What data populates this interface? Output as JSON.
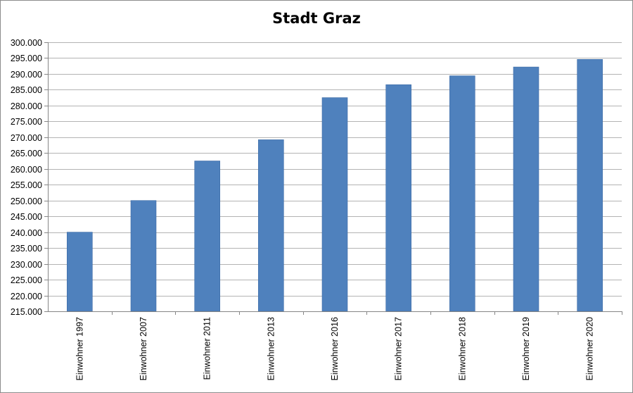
{
  "chart_data": {
    "type": "bar",
    "title": "Stadt Graz",
    "xlabel": "",
    "ylabel": "",
    "categories": [
      "Einwohner 1997",
      "Einwohner 2007",
      "Einwohner 2011",
      "Einwohner 2013",
      "Einwohner 2016",
      "Einwohner 2017",
      "Einwohner 2018",
      "Einwohner 2019",
      "Einwohner 2020"
    ],
    "values": [
      240000,
      250000,
      262500,
      269200,
      282500,
      286600,
      289400,
      292200,
      294600
    ],
    "ylim": [
      215000,
      300000
    ],
    "y_ticks": [
      215000,
      220000,
      225000,
      230000,
      235000,
      240000,
      245000,
      250000,
      255000,
      260000,
      265000,
      270000,
      275000,
      280000,
      285000,
      290000,
      295000,
      300000
    ],
    "y_tick_labels": [
      "215.000",
      "220.000",
      "225.000",
      "230.000",
      "235.000",
      "240.000",
      "245.000",
      "250.000",
      "255.000",
      "260.000",
      "265.000",
      "270.000",
      "275.000",
      "280.000",
      "285.000",
      "290.000",
      "295.000",
      "300.000"
    ],
    "grid": true,
    "legend": "none",
    "colors": {
      "bar": "#4f81bd",
      "bar_edge": "#3e6ca6",
      "grid": "#b3b3b3",
      "axis": "#868686"
    }
  }
}
